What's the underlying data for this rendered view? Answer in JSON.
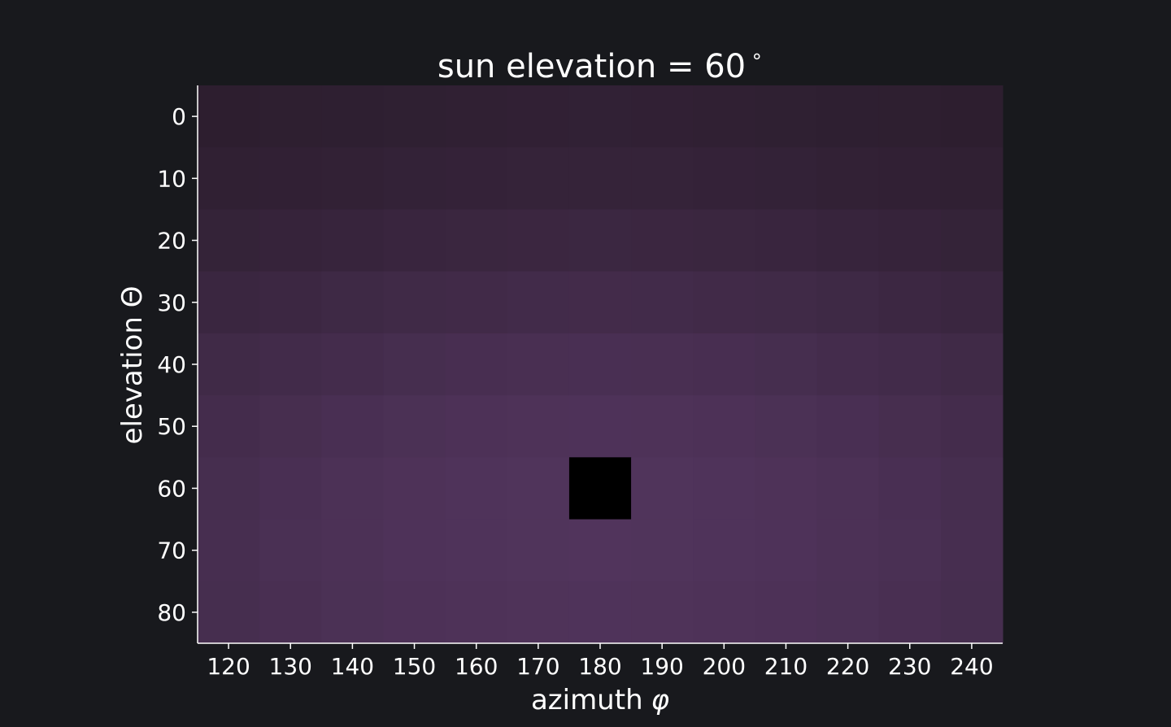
{
  "chart_data": {
    "type": "heatmap",
    "title": "sun elevation = 60",
    "title_superscript": "∘",
    "xlabel": "azimuth",
    "xlabel_symbol": "φ",
    "ylabel": "elevation Θ",
    "x": [
      120,
      130,
      140,
      150,
      160,
      170,
      180,
      190,
      200,
      210,
      220,
      230,
      240
    ],
    "y": [
      0,
      10,
      20,
      30,
      40,
      50,
      60,
      70,
      80
    ],
    "x_tick_labels": [
      "120",
      "130",
      "140",
      "150",
      "160",
      "170",
      "180",
      "190",
      "200",
      "210",
      "220",
      "230",
      "240"
    ],
    "y_tick_labels": [
      "0",
      "10",
      "20",
      "30",
      "40",
      "50",
      "60",
      "70",
      "80"
    ],
    "xlim": [
      115,
      245
    ],
    "ylim": [
      85,
      -5
    ],
    "y_inverted": true,
    "grid": false,
    "legend": "none",
    "masked_cell": {
      "x": 180,
      "y": 60,
      "color": "#000000"
    },
    "colors": {
      "background": "#18191d",
      "axis": "#ffffff",
      "text": "#ffffff",
      "low": "#2b1d2d",
      "high": "#51345c"
    },
    "values": [
      [
        0.05,
        0.07,
        0.09,
        0.11,
        0.13,
        0.15,
        0.16,
        0.15,
        0.13,
        0.11,
        0.09,
        0.07,
        0.05
      ],
      [
        0.12,
        0.15,
        0.18,
        0.21,
        0.23,
        0.25,
        0.26,
        0.25,
        0.23,
        0.21,
        0.18,
        0.15,
        0.12
      ],
      [
        0.24,
        0.28,
        0.32,
        0.36,
        0.39,
        0.41,
        0.42,
        0.41,
        0.39,
        0.36,
        0.32,
        0.28,
        0.24
      ],
      [
        0.4,
        0.45,
        0.5,
        0.55,
        0.58,
        0.61,
        0.62,
        0.61,
        0.58,
        0.55,
        0.5,
        0.45,
        0.4
      ],
      [
        0.55,
        0.61,
        0.67,
        0.72,
        0.76,
        0.79,
        0.8,
        0.79,
        0.76,
        0.72,
        0.67,
        0.61,
        0.55
      ],
      [
        0.66,
        0.73,
        0.8,
        0.85,
        0.89,
        0.92,
        0.93,
        0.92,
        0.89,
        0.85,
        0.8,
        0.73,
        0.66
      ],
      [
        0.72,
        0.8,
        0.87,
        0.92,
        0.96,
        0.98,
        null,
        0.98,
        0.96,
        0.92,
        0.87,
        0.8,
        0.72
      ],
      [
        0.74,
        0.82,
        0.88,
        0.93,
        0.96,
        0.98,
        0.99,
        0.98,
        0.96,
        0.93,
        0.88,
        0.82,
        0.74
      ],
      [
        0.72,
        0.79,
        0.85,
        0.89,
        0.92,
        0.94,
        0.95,
        0.94,
        0.92,
        0.89,
        0.85,
        0.79,
        0.72
      ]
    ]
  }
}
